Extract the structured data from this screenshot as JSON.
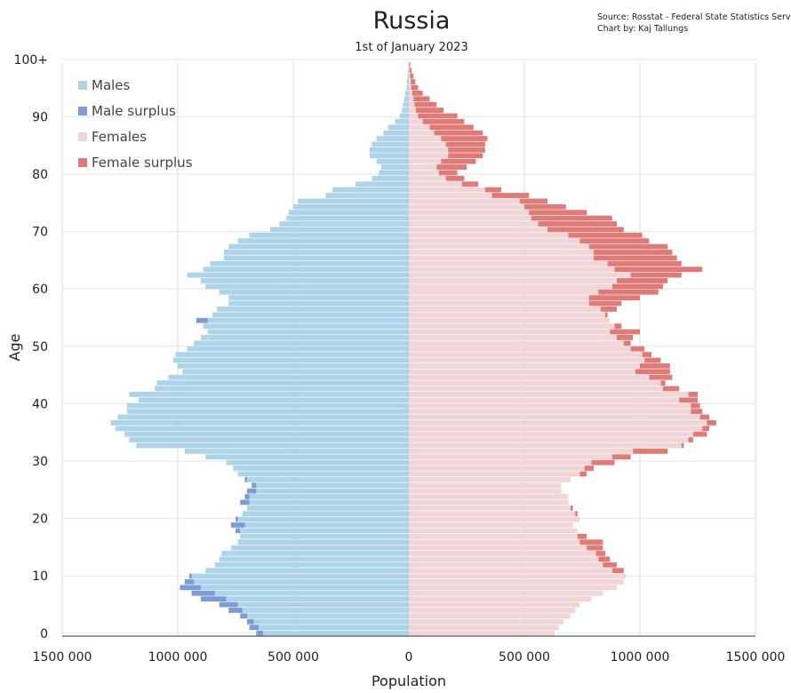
{
  "title": "Russia",
  "subtitle": "1st of January 2023",
  "source_line1": "Source: Rosstat - Federal State Statistics Service",
  "source_line2": "Chart by: Kaj Tallungs",
  "colors": {
    "males": "#aed4ea",
    "male_surplus": "#7d9cd3",
    "females": "#f0d6d6",
    "female_surplus": "#e07a76",
    "grid": "#e6e6e6"
  },
  "chart_data": {
    "type": "bar",
    "orientation": "horizontal",
    "subtype": "population-pyramid",
    "xlabel": "Population",
    "ylabel": "Age",
    "xlim": [
      -1500000,
      1500000
    ],
    "x_ticks": [
      -1500000,
      -1000000,
      -500000,
      0,
      500000,
      1000000,
      1500000
    ],
    "x_tick_labels": [
      "1500 000",
      "1000 000",
      "500 000",
      "0",
      "500 000",
      "1000 000",
      "1500 000"
    ],
    "y_ticks": [
      0,
      10,
      20,
      30,
      40,
      50,
      60,
      70,
      80,
      90,
      100
    ],
    "y_tick_labels": [
      "0",
      "10",
      "20",
      "30",
      "40",
      "50",
      "60",
      "70",
      "80",
      "90",
      "100+"
    ],
    "grid": true,
    "legend_position": "top-left",
    "legend": [
      "Males",
      "Male surplus",
      "Females",
      "Female surplus"
    ],
    "ages": [
      0,
      1,
      2,
      3,
      4,
      5,
      6,
      7,
      8,
      9,
      10,
      11,
      12,
      13,
      14,
      15,
      16,
      17,
      18,
      19,
      20,
      21,
      22,
      23,
      24,
      25,
      26,
      27,
      28,
      29,
      30,
      31,
      32,
      33,
      34,
      35,
      36,
      37,
      38,
      39,
      40,
      41,
      42,
      43,
      44,
      45,
      46,
      47,
      48,
      49,
      50,
      51,
      52,
      53,
      54,
      55,
      56,
      57,
      58,
      59,
      60,
      61,
      62,
      63,
      64,
      65,
      66,
      67,
      68,
      69,
      70,
      71,
      72,
      73,
      74,
      75,
      76,
      77,
      78,
      79,
      80,
      81,
      82,
      83,
      84,
      85,
      86,
      87,
      88,
      89,
      90,
      91,
      92,
      93,
      94,
      95,
      96,
      97,
      98,
      99,
      100
    ],
    "series": [
      {
        "name": "Males",
        "values": [
          660000,
          690000,
          700000,
          730000,
          780000,
          820000,
          900000,
          940000,
          990000,
          970000,
          950000,
          880000,
          840000,
          820000,
          810000,
          770000,
          740000,
          730000,
          750000,
          770000,
          750000,
          720000,
          700000,
          730000,
          710000,
          700000,
          680000,
          710000,
          740000,
          760000,
          790000,
          880000,
          970000,
          1180000,
          1210000,
          1230000,
          1270000,
          1290000,
          1260000,
          1220000,
          1220000,
          1170000,
          1210000,
          1100000,
          1090000,
          1040000,
          980000,
          1000000,
          1020000,
          1010000,
          960000,
          930000,
          900000,
          870000,
          890000,
          920000,
          850000,
          830000,
          780000,
          780000,
          820000,
          880000,
          900000,
          960000,
          890000,
          860000,
          800000,
          800000,
          780000,
          740000,
          690000,
          600000,
          560000,
          530000,
          520000,
          500000,
          480000,
          360000,
          330000,
          230000,
          160000,
          130000,
          120000,
          140000,
          170000,
          170000,
          160000,
          140000,
          110000,
          90000,
          60000,
          40000,
          30000,
          25000,
          20000,
          15000,
          10000,
          8000,
          5000,
          3000,
          2000
        ]
      },
      {
        "name": "Females",
        "values": [
          630000,
          650000,
          670000,
          700000,
          720000,
          740000,
          790000,
          840000,
          900000,
          930000,
          940000,
          930000,
          900000,
          870000,
          850000,
          840000,
          840000,
          770000,
          730000,
          710000,
          740000,
          730000,
          710000,
          690000,
          690000,
          660000,
          660000,
          700000,
          770000,
          800000,
          890000,
          960000,
          1120000,
          1190000,
          1230000,
          1290000,
          1300000,
          1330000,
          1300000,
          1270000,
          1260000,
          1250000,
          1250000,
          1170000,
          1110000,
          1140000,
          1130000,
          1130000,
          1090000,
          1050000,
          1020000,
          960000,
          970000,
          1000000,
          920000,
          870000,
          860000,
          900000,
          920000,
          1000000,
          1080000,
          1100000,
          1120000,
          1180000,
          1270000,
          1180000,
          1160000,
          1140000,
          1120000,
          1040000,
          1010000,
          930000,
          900000,
          880000,
          770000,
          680000,
          600000,
          520000,
          400000,
          300000,
          240000,
          210000,
          250000,
          290000,
          320000,
          330000,
          330000,
          340000,
          320000,
          280000,
          240000,
          210000,
          150000,
          120000,
          90000,
          60000,
          40000,
          28000,
          20000,
          12000,
          6000
        ]
      }
    ]
  }
}
